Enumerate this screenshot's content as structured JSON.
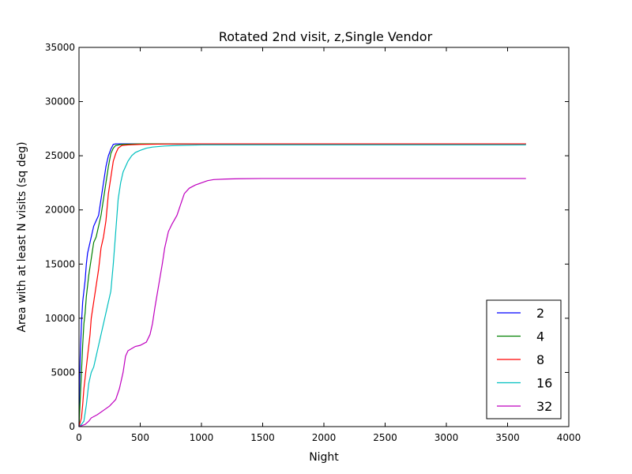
{
  "chart_data": {
    "type": "line",
    "title": "Rotated 2nd visit, z,Single Vendor",
    "xlabel": "Night",
    "ylabel": "Area with at least N visits (sq deg)",
    "xlim": [
      0,
      4000
    ],
    "ylim": [
      0,
      35000
    ],
    "xticks": [
      0,
      500,
      1000,
      1500,
      2000,
      2500,
      3000,
      3500,
      4000
    ],
    "yticks": [
      0,
      5000,
      10000,
      15000,
      20000,
      25000,
      30000,
      35000
    ],
    "grid": false,
    "legend_position": "lower-right",
    "series": [
      {
        "name": "2",
        "color": "#0000ff",
        "x": [
          0,
          5,
          10,
          20,
          30,
          40,
          50,
          60,
          70,
          80,
          90,
          100,
          120,
          140,
          160,
          180,
          200,
          220,
          240,
          260,
          280,
          300,
          400,
          1000,
          3650
        ],
        "y": [
          0,
          4000,
          6500,
          9500,
          11500,
          12500,
          13500,
          15000,
          16000,
          16500,
          17000,
          17500,
          18500,
          19000,
          19500,
          21000,
          22500,
          24000,
          25000,
          25600,
          26050,
          26100,
          26100,
          26100,
          26100
        ]
      },
      {
        "name": "4",
        "color": "#008000",
        "x": [
          0,
          10,
          20,
          30,
          40,
          50,
          60,
          70,
          80,
          100,
          120,
          140,
          160,
          180,
          200,
          220,
          240,
          260,
          280,
          300,
          350,
          500,
          1000,
          3650
        ],
        "y": [
          0,
          2500,
          5000,
          7500,
          9500,
          10500,
          12000,
          13000,
          14000,
          15500,
          17000,
          17500,
          18500,
          19500,
          21000,
          22500,
          24000,
          25200,
          25700,
          25950,
          26050,
          26100,
          26100,
          26100
        ]
      },
      {
        "name": "8",
        "color": "#ff0000",
        "x": [
          0,
          20,
          30,
          40,
          50,
          60,
          70,
          80,
          90,
          100,
          120,
          140,
          160,
          180,
          200,
          220,
          240,
          260,
          280,
          300,
          320,
          350,
          400,
          500,
          700,
          1000,
          3650
        ],
        "y": [
          0,
          800,
          2000,
          3500,
          4500,
          5500,
          6500,
          7500,
          8500,
          10000,
          11500,
          13000,
          14500,
          16500,
          17500,
          19000,
          21500,
          23000,
          24500,
          25200,
          25700,
          25950,
          26000,
          26050,
          26080,
          26100,
          26100
        ]
      },
      {
        "name": "16",
        "color": "#00bfbf",
        "x": [
          0,
          20,
          40,
          60,
          80,
          100,
          120,
          140,
          160,
          180,
          200,
          220,
          240,
          260,
          280,
          300,
          320,
          340,
          360,
          380,
          400,
          430,
          460,
          500,
          550,
          600,
          700,
          800,
          1000,
          1500,
          3650
        ],
        "y": [
          0,
          200,
          500,
          2000,
          4000,
          5000,
          5500,
          6500,
          7500,
          8500,
          9500,
          10500,
          11500,
          12500,
          15000,
          18000,
          21000,
          22500,
          23500,
          24000,
          24500,
          25000,
          25300,
          25500,
          25700,
          25800,
          25900,
          25950,
          26000,
          26000,
          26000
        ]
      },
      {
        "name": "32",
        "color": "#bf00bf",
        "x": [
          0,
          50,
          80,
          100,
          150,
          200,
          250,
          300,
          330,
          360,
          380,
          400,
          430,
          460,
          500,
          550,
          580,
          600,
          620,
          650,
          680,
          700,
          730,
          760,
          800,
          830,
          860,
          900,
          950,
          1000,
          1050,
          1100,
          1200,
          1300,
          1500,
          2000,
          3650
        ],
        "y": [
          0,
          200,
          500,
          800,
          1100,
          1500,
          1900,
          2500,
          3500,
          5000,
          6500,
          7000,
          7200,
          7400,
          7500,
          7800,
          8500,
          9500,
          11000,
          13000,
          15000,
          16500,
          18000,
          18700,
          19500,
          20500,
          21500,
          22000,
          22300,
          22500,
          22700,
          22800,
          22850,
          22880,
          22900,
          22900,
          22900
        ]
      }
    ]
  }
}
